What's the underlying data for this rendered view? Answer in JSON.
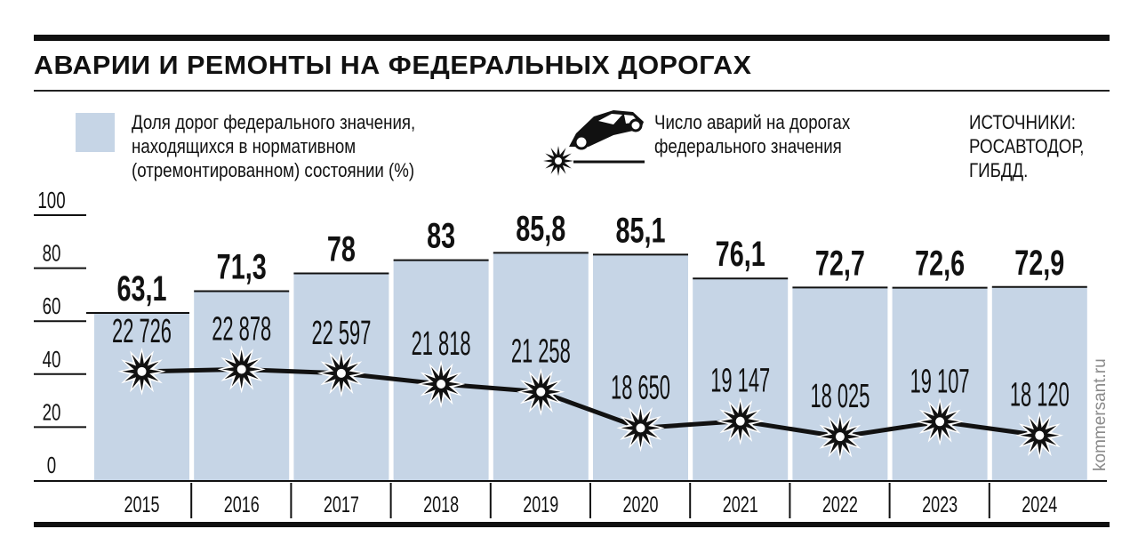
{
  "title": "АВАРИИ И РЕМОНТЫ НА ФЕДЕРАЛЬНЫХ ДОРОГАХ",
  "legend": {
    "bars": [
      "Доля дорог федерального значения,",
      "находящихся в нормативном",
      "(отремонтированном) состоянии (%)"
    ],
    "line": [
      "Число аварий на дорогах",
      "федерального значения"
    ]
  },
  "sources": [
    "ИСТОЧНИКИ:",
    "РОСАВТОДОР,",
    "ГИБДД."
  ],
  "watermark": "kommersant.ru",
  "colors": {
    "bar": "#c6d5e6",
    "ink": "#111111"
  },
  "chart_data": {
    "type": "bar",
    "title": "АВАРИИ И РЕМОНТЫ НА ФЕДЕРАЛЬНЫХ ДОРОГАХ",
    "categories": [
      "2015",
      "2016",
      "2017",
      "2018",
      "2019",
      "2020",
      "2021",
      "2022",
      "2023",
      "2024"
    ],
    "yticks": [
      "100",
      "80",
      "60",
      "40",
      "20",
      "0"
    ],
    "ylim": [
      0,
      100
    ],
    "series": [
      {
        "name": "Доля дорог в нормативном состоянии (%)",
        "type": "bar",
        "values": [
          63.1,
          71.3,
          78,
          83,
          85.8,
          85.1,
          76.1,
          72.7,
          72.6,
          72.9
        ],
        "labels": [
          "63,1",
          "71,3",
          "78",
          "83",
          "85,8",
          "85,1",
          "76,1",
          "72,7",
          "72,6",
          "72,9"
        ]
      },
      {
        "name": "Число аварий",
        "type": "line",
        "values": [
          22726,
          22878,
          22597,
          21818,
          21258,
          18650,
          19147,
          18025,
          19107,
          18120
        ],
        "labels": [
          "22 726",
          "22 878",
          "22 597",
          "21 818",
          "21 258",
          "18 650",
          "19 147",
          "18 025",
          "19 107",
          "18 120"
        ],
        "axis_range": [
          14895,
          33995
        ]
      }
    ]
  }
}
